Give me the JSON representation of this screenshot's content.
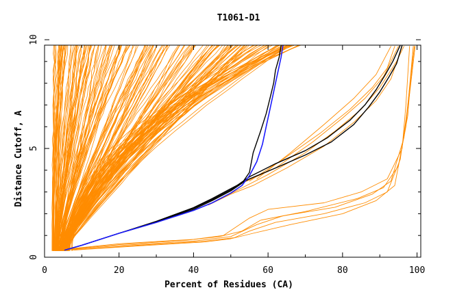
{
  "chart_data": {
    "type": "line",
    "title": "T1061-D1",
    "xlabel": "Percent of Residues (CA)",
    "ylabel": "Distance Cutoff, A",
    "xlim": [
      0,
      101
    ],
    "ylim": [
      0,
      9.75
    ],
    "x_ticks": [
      0,
      20,
      40,
      60,
      80,
      100
    ],
    "y_ticks": [
      0,
      5,
      10
    ],
    "colors": {
      "orange": "#ff8c00",
      "black": "#000000",
      "blue": "#1a1aff"
    },
    "orange_groups": [
      {
        "x0": 2.0,
        "spread": [
          0.0,
          3.0
        ],
        "p": [
          1.2,
          2.6
        ],
        "count": 22
      },
      {
        "x0": 2.5,
        "spread": [
          4.0,
          10.0
        ],
        "p": [
          0.9,
          1.6
        ],
        "count": 28
      },
      {
        "x0": 3.0,
        "spread": [
          10.0,
          22.0
        ],
        "p": [
          0.9,
          1.4
        ],
        "count": 30
      },
      {
        "x0": 3.5,
        "spread": [
          22.0,
          36.0
        ],
        "p": [
          0.9,
          1.3
        ],
        "count": 34
      },
      {
        "x0": 4.0,
        "spread": [
          36.0,
          50.0
        ],
        "p": [
          1.0,
          1.4
        ],
        "count": 36
      },
      {
        "x0": 5.0,
        "spread": [
          50.0,
          60.0
        ],
        "p": [
          1.3,
          1.9
        ],
        "count": 24
      },
      {
        "x0": 6.0,
        "spread": [
          58.0,
          62.0
        ],
        "p": [
          1.6,
          2.4
        ],
        "count": 10
      }
    ],
    "orange_highlight": [
      {
        "name": "",
        "points": [
          [
            4.5,
            0.35
          ],
          [
            20,
            0.62
          ],
          [
            40,
            0.82
          ],
          [
            48,
            1.0
          ],
          [
            55,
            1.8
          ],
          [
            60,
            2.2
          ],
          [
            75,
            2.5
          ],
          [
            85,
            3.0
          ],
          [
            92,
            3.6
          ],
          [
            96,
            5.0
          ],
          [
            97,
            7.0
          ],
          [
            98,
            9.7
          ]
        ]
      },
      {
        "name": "",
        "points": [
          [
            5.5,
            0.35
          ],
          [
            20,
            0.58
          ],
          [
            38,
            0.78
          ],
          [
            47,
            0.95
          ],
          [
            53,
            1.2
          ],
          [
            58,
            1.7
          ],
          [
            70,
            2.1
          ],
          [
            84,
            2.7
          ],
          [
            91,
            3.2
          ],
          [
            95,
            4.2
          ],
          [
            97.5,
            6.5
          ],
          [
            99,
            9.7
          ]
        ]
      },
      {
        "name": "",
        "points": [
          [
            6.5,
            0.35
          ],
          [
            22,
            0.56
          ],
          [
            40,
            0.74
          ],
          [
            50,
            0.95
          ],
          [
            57,
            1.5
          ],
          [
            64,
            1.9
          ],
          [
            78,
            2.3
          ],
          [
            88,
            2.9
          ],
          [
            93,
            3.5
          ],
          [
            96.5,
            5.5
          ],
          [
            98.5,
            8.5
          ],
          [
            99.3,
            9.7
          ]
        ]
      },
      {
        "name": "",
        "points": [
          [
            7.5,
            0.33
          ],
          [
            25,
            0.55
          ],
          [
            42,
            0.72
          ],
          [
            51,
            0.9
          ],
          [
            55,
            1.2
          ],
          [
            62,
            1.6
          ],
          [
            75,
            2.0
          ],
          [
            86,
            2.5
          ],
          [
            92,
            3.0
          ],
          [
            95.5,
            4.5
          ],
          [
            98,
            7.5
          ],
          [
            99.5,
            9.7
          ]
        ]
      },
      {
        "name": "",
        "points": [
          [
            8.0,
            0.33
          ],
          [
            25,
            0.52
          ],
          [
            43,
            0.7
          ],
          [
            50,
            0.85
          ],
          [
            56,
            1.1
          ],
          [
            66,
            1.5
          ],
          [
            80,
            2.0
          ],
          [
            89,
            2.6
          ],
          [
            94,
            3.3
          ],
          [
            97,
            6.0
          ],
          [
            99,
            9.7
          ]
        ]
      },
      {
        "name": "",
        "points": [
          [
            44,
            2.4
          ],
          [
            50,
            2.9
          ],
          [
            56,
            3.3
          ],
          [
            65,
            4.1
          ],
          [
            75,
            5.1
          ],
          [
            83,
            6.2
          ],
          [
            89,
            7.2
          ],
          [
            93,
            8.2
          ],
          [
            96,
            9.7
          ]
        ]
      },
      {
        "name": "",
        "points": [
          [
            46,
            2.6
          ],
          [
            52,
            3.1
          ],
          [
            60,
            3.8
          ],
          [
            70,
            4.8
          ],
          [
            78,
            5.8
          ],
          [
            85,
            6.8
          ],
          [
            90,
            7.8
          ],
          [
            94.5,
            9.0
          ],
          [
            96.5,
            9.7
          ]
        ]
      },
      {
        "name": "",
        "points": [
          [
            53,
            3.4
          ],
          [
            62,
            4.1
          ],
          [
            72,
            5.3
          ],
          [
            80,
            6.4
          ],
          [
            86,
            7.3
          ],
          [
            91,
            8.3
          ],
          [
            95,
            9.7
          ]
        ]
      },
      {
        "name": "",
        "points": [
          [
            55,
            3.5
          ],
          [
            64,
            4.5
          ],
          [
            74,
            5.7
          ],
          [
            82,
            6.8
          ],
          [
            88,
            7.8
          ],
          [
            92,
            8.7
          ],
          [
            94,
            9.7
          ]
        ]
      },
      {
        "name": "",
        "points": [
          [
            57,
            3.6
          ],
          [
            66,
            4.8
          ],
          [
            75,
            6.1
          ],
          [
            83,
            7.3
          ],
          [
            89,
            8.4
          ],
          [
            93,
            9.7
          ]
        ]
      }
    ],
    "black_series": [
      {
        "name": "",
        "points": [
          [
            5.5,
            0.33
          ],
          [
            10,
            0.55
          ],
          [
            20,
            1.1
          ],
          [
            30,
            1.6
          ],
          [
            40,
            2.2
          ],
          [
            45,
            2.6
          ],
          [
            50,
            3.05
          ],
          [
            53,
            3.4
          ],
          [
            55,
            3.9
          ],
          [
            56,
            4.8
          ],
          [
            58,
            5.8
          ],
          [
            59.5,
            6.6
          ],
          [
            60.5,
            7.3
          ],
          [
            61.5,
            8.0
          ],
          [
            62,
            8.6
          ],
          [
            63,
            9.2
          ],
          [
            63.5,
            9.75
          ]
        ]
      },
      {
        "name": "",
        "points": [
          [
            5.5,
            0.33
          ],
          [
            10,
            0.55
          ],
          [
            20,
            1.1
          ],
          [
            30,
            1.62
          ],
          [
            40,
            2.25
          ],
          [
            45,
            2.65
          ],
          [
            50,
            3.1
          ],
          [
            55,
            3.7
          ],
          [
            62,
            4.3
          ],
          [
            70,
            4.9
          ],
          [
            76,
            5.5
          ],
          [
            82,
            6.3
          ],
          [
            86,
            7.0
          ],
          [
            89,
            7.7
          ],
          [
            91.5,
            8.4
          ],
          [
            93.5,
            9.0
          ],
          [
            95.5,
            9.75
          ]
        ]
      },
      {
        "name": "",
        "points": [
          [
            5.5,
            0.33
          ],
          [
            10,
            0.55
          ],
          [
            20,
            1.1
          ],
          [
            30,
            1.65
          ],
          [
            40,
            2.28
          ],
          [
            45,
            2.7
          ],
          [
            50,
            3.15
          ],
          [
            55,
            3.6
          ],
          [
            62,
            4.1
          ],
          [
            70,
            4.7
          ],
          [
            77,
            5.3
          ],
          [
            83,
            6.1
          ],
          [
            87,
            6.9
          ],
          [
            90,
            7.6
          ],
          [
            92.5,
            8.3
          ],
          [
            94.5,
            8.9
          ],
          [
            96,
            9.75
          ]
        ]
      }
    ],
    "blue_series": [
      {
        "name": "",
        "points": [
          [
            5.5,
            0.33
          ],
          [
            10,
            0.55
          ],
          [
            20,
            1.1
          ],
          [
            30,
            1.6
          ],
          [
            40,
            2.15
          ],
          [
            45,
            2.5
          ],
          [
            50,
            2.95
          ],
          [
            53,
            3.3
          ],
          [
            55,
            3.75
          ],
          [
            57,
            4.4
          ],
          [
            58.5,
            5.2
          ],
          [
            59.5,
            6.0
          ],
          [
            60.5,
            6.8
          ],
          [
            61.5,
            7.6
          ],
          [
            62.5,
            8.4
          ],
          [
            63.5,
            9.2
          ],
          [
            64,
            9.75
          ]
        ]
      }
    ]
  }
}
